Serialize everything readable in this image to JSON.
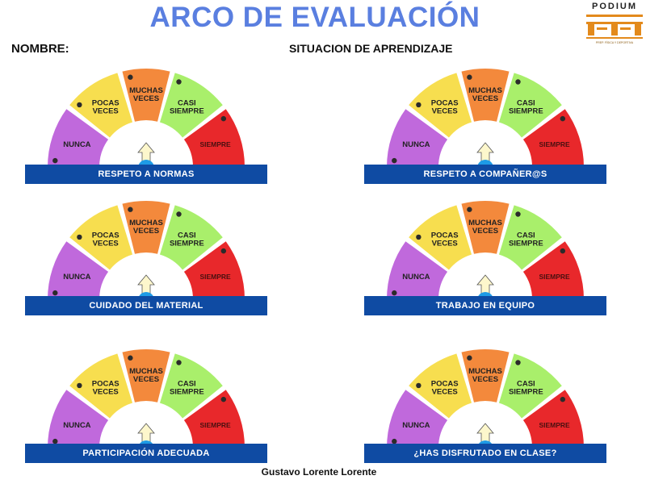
{
  "title": "ARCO DE EVALUACIÓN",
  "nombre_label": "NOMBRE:",
  "situacion_label": "SITUACION DE APRENDIZAJE",
  "logo": {
    "word": "PODIUM",
    "subtext": "PREP. FÍSICA Y DEPORTIVA"
  },
  "scale": {
    "nunca": "NUNCA",
    "pocas_1": "POCAS",
    "pocas_2": "VECES",
    "muchas_1": "MUCHAS",
    "muchas_2": "VECES",
    "casi_1": "CASI",
    "casi_2": "SIEMPRE",
    "siempre": "SIEMPRE"
  },
  "colors": {
    "nunca": "#c069dc",
    "pocas": "#f7de4f",
    "muchas": "#f3893c",
    "casi": "#a9ef6b",
    "siempre": "#e8282b",
    "banner": "#0f4ba3",
    "title": "#5a7fe0"
  },
  "arcs": [
    {
      "label": "RESPETO A NORMAS"
    },
    {
      "label": "RESPETO A COMPAÑER@S"
    },
    {
      "label": "CUIDADO DEL MATERIAL"
    },
    {
      "label": "TRABAJO EN EQUIPO"
    },
    {
      "label": "PARTICIPACIÓN ADECUADA"
    },
    {
      "label": "¿HAS DISFRUTADO EN CLASE?"
    }
  ],
  "author": "Gustavo Lorente Lorente"
}
